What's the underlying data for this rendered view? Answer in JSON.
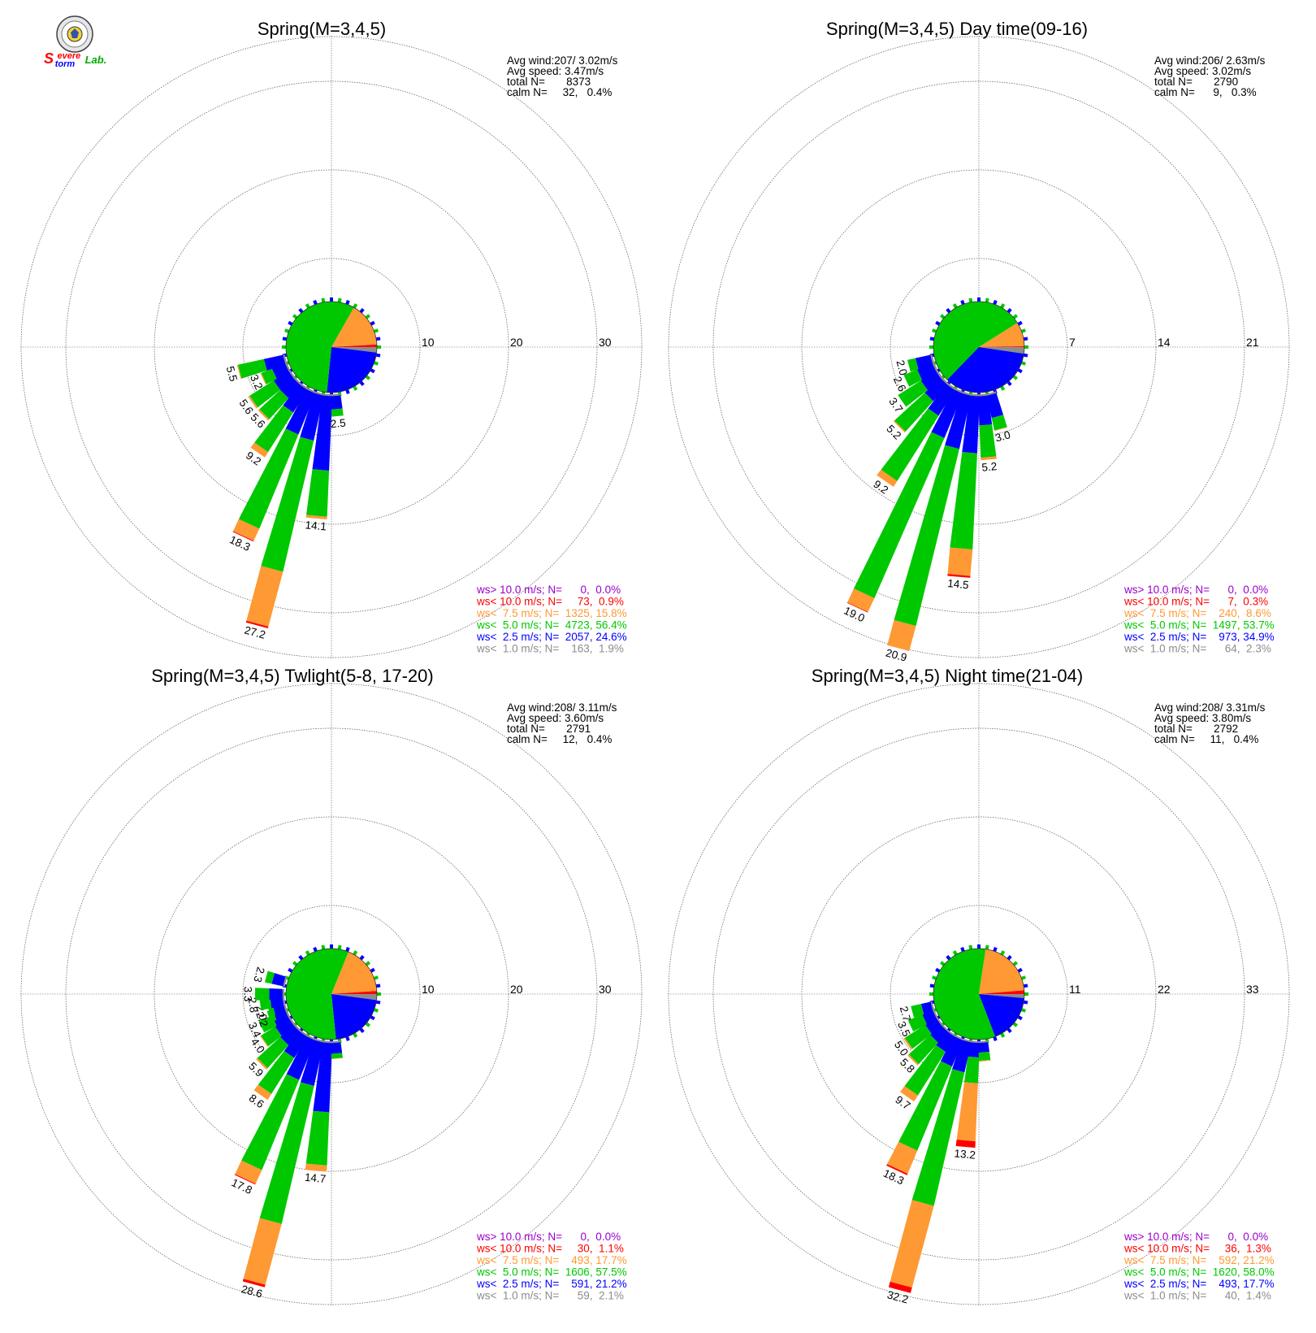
{
  "colors": {
    "calm": "#8c8c8c",
    "lt2_5": "#0000ff",
    "lt5": "#00c800",
    "lt7_5": "#ff9933",
    "lt10": "#ff0000",
    "gt10": "#9900cc",
    "grid": "#555555"
  },
  "logo": {
    "icon": "lab-seal-icon",
    "text_s1": "S",
    "text_evere": "evere",
    "text_torm": "torm",
    "text_lab": "Lab."
  },
  "chart_data": [
    {
      "type": "windrose",
      "title": "Spring(M=3,4,5)",
      "rings": [
        10,
        20,
        30
      ],
      "ring_labels": [
        "10",
        "20",
        "30"
      ],
      "stats": {
        "avg_wind": "Avg wind:207/ 3.02m/s",
        "avg_speed": "Avg speed: 3.47m/s",
        "total": "total N=       8373",
        "calm": "calm N=     32,   0.4%"
      },
      "bars": [
        {
          "dir": 185,
          "total": 14.1,
          "label": "14.1",
          "c": [
            0.2,
            8.4,
            5.2,
            0.3,
            0
          ]
        },
        {
          "dir": 195,
          "total": 27.2,
          "label": "27.2",
          "c": [
            0.2,
            5.2,
            15.2,
            6.4,
            0.2
          ]
        },
        {
          "dir": 205,
          "total": 18.3,
          "label": "18.3",
          "c": [
            0.2,
            5.0,
            11.5,
            1.5,
            0.1
          ]
        },
        {
          "dir": 215,
          "total": 9.2,
          "label": "9.2",
          "c": [
            0.2,
            3.0,
            5.3,
            0.7,
            0
          ]
        },
        {
          "dir": 225,
          "total": 5.6,
          "label": "5.6",
          "c": [
            0.2,
            2.0,
            3.2,
            0.2,
            0
          ]
        },
        {
          "dir": 235,
          "total": 5.6,
          "label": "5.6",
          "c": [
            0.2,
            2.0,
            3.2,
            0.2,
            0
          ]
        },
        {
          "dir": 245,
          "total": 3.2,
          "label": "3.2",
          "c": [
            0.2,
            1.6,
            1.3,
            0.1,
            0
          ]
        },
        {
          "dir": 255,
          "total": 5.5,
          "label": "5.5",
          "c": [
            0.2,
            2.2,
            3.0,
            0.1,
            0
          ]
        },
        {
          "dir": 175,
          "total": 2.5,
          "label": "2.5",
          "c": [
            0.2,
            1.5,
            0.8,
            0,
            0
          ]
        }
      ],
      "legend": [
        {
          "text": "ws> 10.0 m/s; N=      0,  0.0%",
          "color": "#9900cc"
        },
        {
          "text": "ws< 10.0 m/s; N=     73,  0.9%",
          "color": "#ff0000"
        },
        {
          "text": "ws<  7.5 m/s; N=  1325, 15.8%",
          "color": "#ff9933"
        },
        {
          "text": "ws<  5.0 m/s; N=  4723, 56.4%",
          "color": "#00c800"
        },
        {
          "text": "ws<  2.5 m/s; N=  2057, 24.6%",
          "color": "#0000ff"
        },
        {
          "text": "ws<  1.0 m/s; N=    163,  1.9%",
          "color": "#8c8c8c"
        }
      ],
      "pie": [
        1.9,
        24.6,
        56.4,
        15.8,
        0.9,
        0.0
      ]
    },
    {
      "type": "windrose",
      "title": "Spring(M=3,4,5) Day time(09-16)",
      "rings": [
        7,
        14,
        21
      ],
      "ring_labels": [
        "7",
        "14",
        "21"
      ],
      "stats": {
        "avg_wind": "Avg wind:206/ 2.63m/s",
        "avg_speed": "Avg speed: 3.02m/s",
        "total": "total N=       2790",
        "calm": "calm N=      9,   0.3%"
      },
      "bars": [
        {
          "dir": 175,
          "total": 5.2,
          "label": "5.2",
          "c": [
            0.15,
            2.3,
            2.55,
            0.2,
            0
          ]
        },
        {
          "dir": 185,
          "total": 14.5,
          "label": "14.5",
          "c": [
            0.15,
            4.5,
            7.6,
            2.1,
            0.15
          ]
        },
        {
          "dir": 195,
          "total": 20.9,
          "label": "20.9",
          "c": [
            0.15,
            4.3,
            14.4,
            2.05,
            0
          ]
        },
        {
          "dir": 205,
          "total": 19.0,
          "label": "19.0",
          "c": [
            0.15,
            3.8,
            13.8,
            1.2,
            0.05
          ]
        },
        {
          "dir": 215,
          "total": 9.2,
          "label": "9.2",
          "c": [
            0.15,
            2.4,
            6.1,
            0.55,
            0
          ]
        },
        {
          "dir": 225,
          "total": 5.2,
          "label": "5.2",
          "c": [
            0.15,
            1.7,
            3.25,
            0.1,
            0
          ]
        },
        {
          "dir": 235,
          "total": 3.7,
          "label": "3.7",
          "c": [
            0.15,
            1.4,
            2.15,
            0,
            0
          ]
        },
        {
          "dir": 245,
          "total": 2.6,
          "label": "2.6",
          "c": [
            0.15,
            1.3,
            1.15,
            0,
            0
          ]
        },
        {
          "dir": 255,
          "total": 2.0,
          "label": "2.0",
          "c": [
            0.15,
            1.2,
            0.65,
            0,
            0
          ]
        },
        {
          "dir": 165,
          "total": 3.0,
          "label": "3.0",
          "c": [
            0.15,
            1.8,
            1.0,
            0.05,
            0
          ]
        }
      ],
      "legend": [
        {
          "text": "ws> 10.0 m/s; N=      0,  0.0%",
          "color": "#9900cc"
        },
        {
          "text": "ws< 10.0 m/s; N=      7,  0.3%",
          "color": "#ff0000"
        },
        {
          "text": "ws<  7.5 m/s; N=    240,  8.6%",
          "color": "#ff9933"
        },
        {
          "text": "ws<  5.0 m/s; N=  1497, 53.7%",
          "color": "#00c800"
        },
        {
          "text": "ws<  2.5 m/s; N=    973, 34.9%",
          "color": "#0000ff"
        },
        {
          "text": "ws<  1.0 m/s; N=      64,  2.3%",
          "color": "#8c8c8c"
        }
      ],
      "pie": [
        2.3,
        34.9,
        53.7,
        8.6,
        0.3,
        0.0
      ]
    },
    {
      "type": "windrose",
      "title": "Spring(M=3,4,5) Twlight(5-8, 17-20)",
      "rings": [
        10,
        20,
        30
      ],
      "ring_labels": [
        "10",
        "20",
        "30"
      ],
      "stats": {
        "avg_wind": "Avg wind:208/ 3.11m/s",
        "avg_speed": "Avg speed: 3.60m/s",
        "total": "total N=       2791",
        "calm": "calm N=     12,   0.4%"
      },
      "bars": [
        {
          "dir": 185,
          "total": 14.7,
          "label": "14.7",
          "c": [
            0.2,
            7.8,
            6.0,
            0.7,
            0
          ]
        },
        {
          "dir": 195,
          "total": 28.6,
          "label": "28.6",
          "c": [
            0.2,
            5.0,
            16.0,
            7.1,
            0.3
          ]
        },
        {
          "dir": 205,
          "total": 17.8,
          "label": "17.8",
          "c": [
            0.2,
            4.8,
            11.0,
            1.7,
            0.1
          ]
        },
        {
          "dir": 215,
          "total": 8.6,
          "label": "8.6",
          "c": [
            0.2,
            2.8,
            4.8,
            0.8,
            0
          ]
        },
        {
          "dir": 225,
          "total": 5.9,
          "label": "5.9",
          "c": [
            0.2,
            2.0,
            3.5,
            0.2,
            0
          ]
        },
        {
          "dir": 235,
          "total": 4.0,
          "label": "4.0",
          "c": [
            0.2,
            1.8,
            1.9,
            0.1,
            0
          ]
        },
        {
          "dir": 245,
          "total": 3.4,
          "label": "3.4",
          "c": [
            0.2,
            1.6,
            1.6,
            0,
            0
          ]
        },
        {
          "dir": 250,
          "total": 2.2,
          "label": "2.2",
          "c": [
            0.2,
            1.3,
            0.7,
            0,
            0
          ]
        },
        {
          "dir": 255,
          "total": 2.0,
          "label": "2.0",
          "c": [
            0.2,
            1.2,
            0.6,
            0,
            0
          ]
        },
        {
          "dir": 262,
          "total": 2.8,
          "label": "2.8",
          "c": [
            0.2,
            1.4,
            1.2,
            0,
            0
          ]
        },
        {
          "dir": 270,
          "total": 3.3,
          "label": "3.3",
          "c": [
            0.2,
            1.5,
            1.6,
            0,
            0
          ]
        },
        {
          "dir": 285,
          "total": 2.3,
          "label": "2.3",
          "c": [
            0.2,
            1.3,
            0.8,
            0,
            0
          ]
        },
        {
          "dir": 175,
          "total": 2.0,
          "label": "",
          "c": [
            0.2,
            1.2,
            0.55,
            0.05,
            0
          ]
        }
      ],
      "legend": [
        {
          "text": "ws> 10.0 m/s; N=      0,  0.0%",
          "color": "#9900cc"
        },
        {
          "text": "ws< 10.0 m/s; N=     30,  1.1%",
          "color": "#ff0000"
        },
        {
          "text": "ws<  7.5 m/s; N=    493, 17.7%",
          "color": "#ff9933"
        },
        {
          "text": "ws<  5.0 m/s; N=  1606, 57.5%",
          "color": "#00c800"
        },
        {
          "text": "ws<  2.5 m/s; N=    591, 21.2%",
          "color": "#0000ff"
        },
        {
          "text": "ws<  1.0 m/s; N=      59,  2.1%",
          "color": "#8c8c8c"
        }
      ],
      "pie": [
        2.1,
        21.2,
        57.5,
        17.7,
        1.1,
        0.0
      ]
    },
    {
      "type": "windrose",
      "title": "Spring(M=3,4,5) Night time(21-04)",
      "rings": [
        11,
        22,
        33
      ],
      "ring_labels": [
        "11",
        "22",
        "33"
      ],
      "stats": {
        "avg_wind": "Avg wind:208/ 3.31m/s",
        "avg_speed": "Avg speed: 3.80m/s",
        "total": "total N=       2792",
        "calm": "calm N=     11,   0.4%"
      },
      "bars": [
        {
          "dir": 185,
          "total": 13.2,
          "label": "13.2",
          "c": [
            0.2,
            1.8,
            3.2,
            7.2,
            0.8
          ]
        },
        {
          "dir": 195,
          "total": 32.2,
          "label": "32.2",
          "c": [
            0.2,
            3.8,
            17.0,
            10.5,
            0.7
          ]
        },
        {
          "dir": 205,
          "total": 18.3,
          "label": "18.3",
          "c": [
            0.2,
            3.5,
            11.3,
            3.1,
            0.2
          ]
        },
        {
          "dir": 215,
          "total": 9.7,
          "label": "9.7",
          "c": [
            0.2,
            2.2,
            6.4,
            0.9,
            0
          ]
        },
        {
          "dir": 225,
          "total": 5.8,
          "label": "5.8",
          "c": [
            0.2,
            1.8,
            3.6,
            0.2,
            0
          ]
        },
        {
          "dir": 235,
          "total": 5.0,
          "label": "5.0",
          "c": [
            0.2,
            1.6,
            3.0,
            0.2,
            0
          ]
        },
        {
          "dir": 245,
          "total": 3.5,
          "label": "3.5",
          "c": [
            0.2,
            1.4,
            1.9,
            0,
            0
          ]
        },
        {
          "dir": 255,
          "total": 2.7,
          "label": "2.7",
          "c": [
            0.2,
            1.2,
            1.3,
            0,
            0
          ]
        },
        {
          "dir": 175,
          "total": 2.5,
          "label": "",
          "c": [
            0.2,
            1.2,
            1.0,
            0.1,
            0
          ]
        }
      ],
      "legend": [
        {
          "text": "ws> 10.0 m/s; N=      0,  0.0%",
          "color": "#9900cc"
        },
        {
          "text": "ws< 10.0 m/s; N=     36,  1.3%",
          "color": "#ff0000"
        },
        {
          "text": "ws<  7.5 m/s; N=    592, 21.2%",
          "color": "#ff9933"
        },
        {
          "text": "ws<  5.0 m/s; N=  1620, 58.0%",
          "color": "#00c800"
        },
        {
          "text": "ws<  2.5 m/s; N=    493, 17.7%",
          "color": "#0000ff"
        },
        {
          "text": "ws<  1.0 m/s; N=      40,  1.4%",
          "color": "#8c8c8c"
        }
      ],
      "pie": [
        1.4,
        17.7,
        58.0,
        21.2,
        1.3,
        0.0
      ]
    }
  ]
}
